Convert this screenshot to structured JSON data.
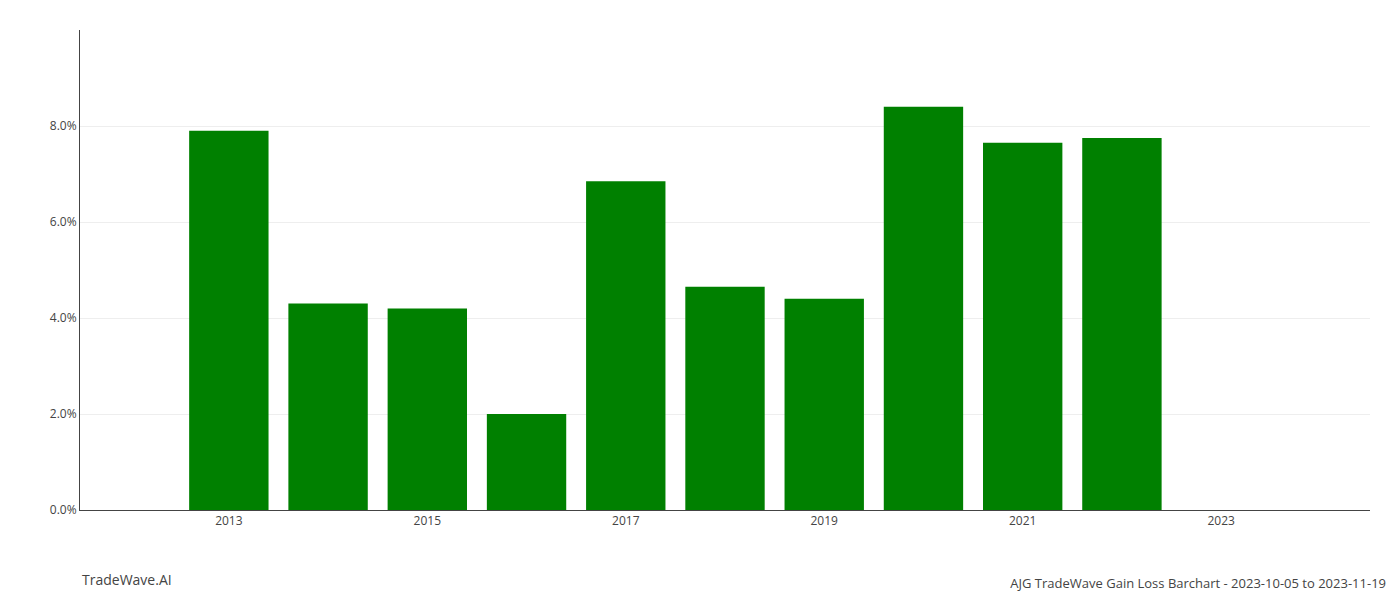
{
  "chart_data": {
    "type": "bar",
    "title": "AJG TradeWave Gain Loss Barchart - 2023-10-05 to 2023-11-19",
    "annotations": [
      "TradeWave.AI"
    ],
    "x": [
      2013,
      2014,
      2015,
      2016,
      2017,
      2018,
      2019,
      2020,
      2021,
      2022
    ],
    "values": [
      0.079,
      0.043,
      0.042,
      0.02,
      0.0685,
      0.0465,
      0.044,
      0.084,
      0.0765,
      0.0775
    ],
    "color": "#008000",
    "xlim": [
      2011.5,
      2024.5
    ],
    "xticks": [
      2013,
      2015,
      2017,
      2019,
      2021,
      2023
    ],
    "ylim": [
      0,
      0.1
    ],
    "yticks": [
      {
        "value": 0.0,
        "label": "0.0%"
      },
      {
        "value": 0.02,
        "label": "2.0%"
      },
      {
        "value": 0.04,
        "label": "4.0%"
      },
      {
        "value": 0.06,
        "label": "6.0%"
      },
      {
        "value": 0.08,
        "label": "8.0%"
      }
    ],
    "grid": true
  }
}
